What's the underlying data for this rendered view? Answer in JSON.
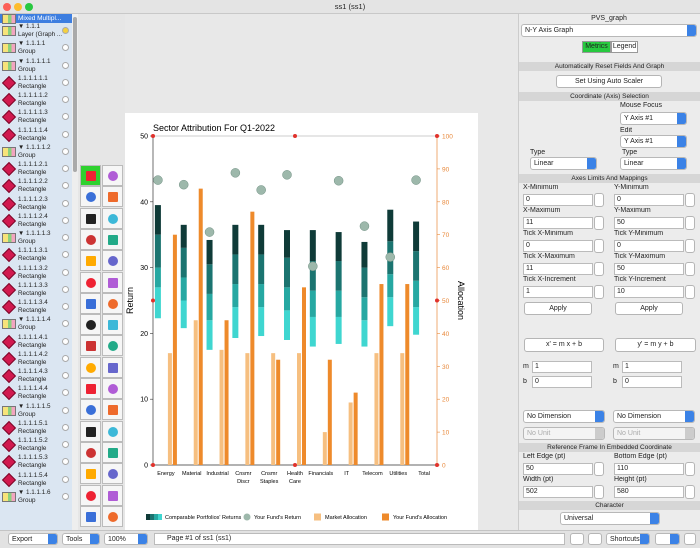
{
  "window_title": "ss1 (ss1)",
  "tree": {
    "selected": "Mixed Multipl...",
    "items": [
      [
        "▼ 1.1.1",
        "Layer (Graph ..."
      ],
      [
        "▼ 1.1.1.1",
        "Group"
      ],
      [
        "▼ 1.1.1.1.1",
        "Group"
      ],
      [
        "1.1.1.1.1.1",
        "Rectangle"
      ],
      [
        "1.1.1.1.1.2",
        "Rectangle"
      ],
      [
        "1.1.1.1.1.3",
        "Rectangle"
      ],
      [
        "1.1.1.1.1.4",
        "Rectangle"
      ],
      [
        "▼ 1.1.1.1.2",
        "Group"
      ],
      [
        "1.1.1.1.2.1",
        "Rectangle"
      ],
      [
        "1.1.1.1.2.2",
        "Rectangle"
      ],
      [
        "1.1.1.1.2.3",
        "Rectangle"
      ],
      [
        "1.1.1.1.2.4",
        "Rectangle"
      ],
      [
        "▼ 1.1.1.1.3",
        "Group"
      ],
      [
        "1.1.1.1.3.1",
        "Rectangle"
      ],
      [
        "1.1.1.1.3.2",
        "Rectangle"
      ],
      [
        "1.1.1.1.3.3",
        "Rectangle"
      ],
      [
        "1.1.1.1.3.4",
        "Rectangle"
      ],
      [
        "▼ 1.1.1.1.4",
        "Group"
      ],
      [
        "1.1.1.1.4.1",
        "Rectangle"
      ],
      [
        "1.1.1.1.4.2",
        "Rectangle"
      ],
      [
        "1.1.1.1.4.3",
        "Rectangle"
      ],
      [
        "1.1.1.1.4.4",
        "Rectangle"
      ],
      [
        "▼ 1.1.1.1.5",
        "Group"
      ],
      [
        "1.1.1.1.5.1",
        "Rectangle"
      ],
      [
        "1.1.1.1.5.2",
        "Rectangle"
      ],
      [
        "1.1.1.1.5.3",
        "Rectangle"
      ],
      [
        "1.1.1.1.5.4",
        "Rectangle"
      ],
      [
        "▼ 1.1.1.1.6",
        "Group"
      ]
    ]
  },
  "chart_data": {
    "type": "combo",
    "title": "Sector Attribution For Q1-2022",
    "y_label": "Return",
    "y2_label": "Allocation",
    "categories": [
      "Energy",
      "Material",
      "Industrial",
      "Cnsmr Discr",
      "Cnsmr Staples",
      "Health Care",
      "Financials",
      "IT",
      "Telecom",
      "Utilities",
      "Total"
    ],
    "ylim": [
      0,
      50
    ],
    "yticks": [
      0,
      10,
      20,
      30,
      40,
      50
    ],
    "y2lim": [
      0,
      100
    ],
    "y2ticks": [
      0,
      10,
      20,
      30,
      40,
      50,
      60,
      70,
      80,
      90,
      100
    ],
    "y2_color": "#e8883a",
    "legend": "bottom",
    "series": [
      {
        "name": "Comparable Portfolios' Returns",
        "kind": "range_bands",
        "colors": [
          "#3fd6d0",
          "#26a8a2",
          "#1b7470",
          "#0f3b38"
        ],
        "values": [
          [
            22.3,
            27,
            30,
            35,
            39.5
          ],
          [
            20.8,
            25,
            28.5,
            33,
            36.5
          ],
          [
            17.5,
            22,
            26,
            30.5,
            34.2
          ],
          [
            19.3,
            24,
            27.5,
            32,
            36.5
          ],
          [
            19.6,
            24,
            27.5,
            32,
            36.5
          ],
          [
            19,
            23.5,
            27,
            31.5,
            35.7
          ],
          [
            18,
            22.5,
            26.5,
            31,
            35.7
          ],
          [
            18.4,
            22.5,
            26.5,
            31,
            35.4
          ],
          [
            18,
            22,
            25.5,
            30,
            33.9
          ],
          [
            21.1,
            25.5,
            29,
            34,
            38.8
          ],
          [
            19.8,
            24,
            28,
            32.5,
            37
          ]
        ]
      },
      {
        "name": "Your Fund's Return",
        "kind": "dot",
        "color": "#9db8ab",
        "values": [
          43.3,
          42.6,
          35.4,
          44.4,
          41.8,
          44.1,
          30.2,
          43.2,
          36.3,
          31.6,
          43.3
        ]
      },
      {
        "name": "Market Allocation",
        "kind": "bar",
        "axis": "y2",
        "color": "#f6bf80",
        "values": [
          34,
          44,
          35,
          34,
          34,
          34,
          10,
          19,
          34,
          34,
          null
        ]
      },
      {
        "name": "Your Fund's Allocation",
        "kind": "bar",
        "axis": "y2",
        "color": "#ee8a2b",
        "values": [
          70,
          84,
          44,
          77,
          32,
          54,
          32,
          22,
          55,
          55,
          null
        ]
      }
    ]
  },
  "inspector": {
    "title": "PVS_graph",
    "graph_type": "N-Y Axis Graph",
    "tabs": [
      "Metrics",
      "Legend"
    ],
    "reset_header": "Automatically Reset Fields And Graph",
    "auto_scaler": "Set Using Auto Scaler",
    "coord_header": "Coordinate (Axis) Selection",
    "mouse_focus": "Mouse Focus",
    "mouse_focus_value": "Y Axis #1",
    "edit": "Edit",
    "edit_value": "Y Axis #1",
    "type_label": "Type",
    "x_type": "Linear",
    "y_type": "Linear",
    "limits_header": "Axes Limits And Mappings",
    "limits": [
      {
        "label": "X-Minimum",
        "value": 0
      },
      {
        "label": "Y-Minimum",
        "value": 0
      },
      {
        "label": "X-Maximum",
        "value": 11
      },
      {
        "label": "Y-Maximum",
        "value": 50
      },
      {
        "label": "Tick X-Minimum",
        "value": 0
      },
      {
        "label": "Tick Y-Minimum",
        "value": 0
      },
      {
        "label": "Tick X-Maximum",
        "value": 11
      },
      {
        "label": "Tick Y-Maximum",
        "value": 50
      },
      {
        "label": "Tick X-Increment",
        "value": 1
      },
      {
        "label": "Tick Y-Increment",
        "value": 10
      }
    ],
    "apply": "Apply",
    "x_map": "x' = m x + b",
    "y_map": "y' = m y + b",
    "m": "m",
    "b": "b",
    "x_m": 1,
    "x_b": 0,
    "y_m": 1,
    "y_b": 0,
    "dimension": "No Dimension",
    "unit": "No Unit",
    "frame_header": "Reference Frame In Embedded Coordinate",
    "frame": [
      {
        "label": "Left Edge (pt)",
        "value": 50
      },
      {
        "label": "Bottom Edge (pt)",
        "value": 110
      },
      {
        "label": "Width (pt)",
        "value": 502
      },
      {
        "label": "Height (pt)",
        "value": 580
      }
    ],
    "char_header": "Character",
    "char_value": "Universal"
  },
  "bottom_bar": {
    "export": "Export",
    "tools": "Tools",
    "zoom": "100%",
    "page": "Page #1 of ss1 (ss1)",
    "shortcuts": "Shortcuts"
  }
}
